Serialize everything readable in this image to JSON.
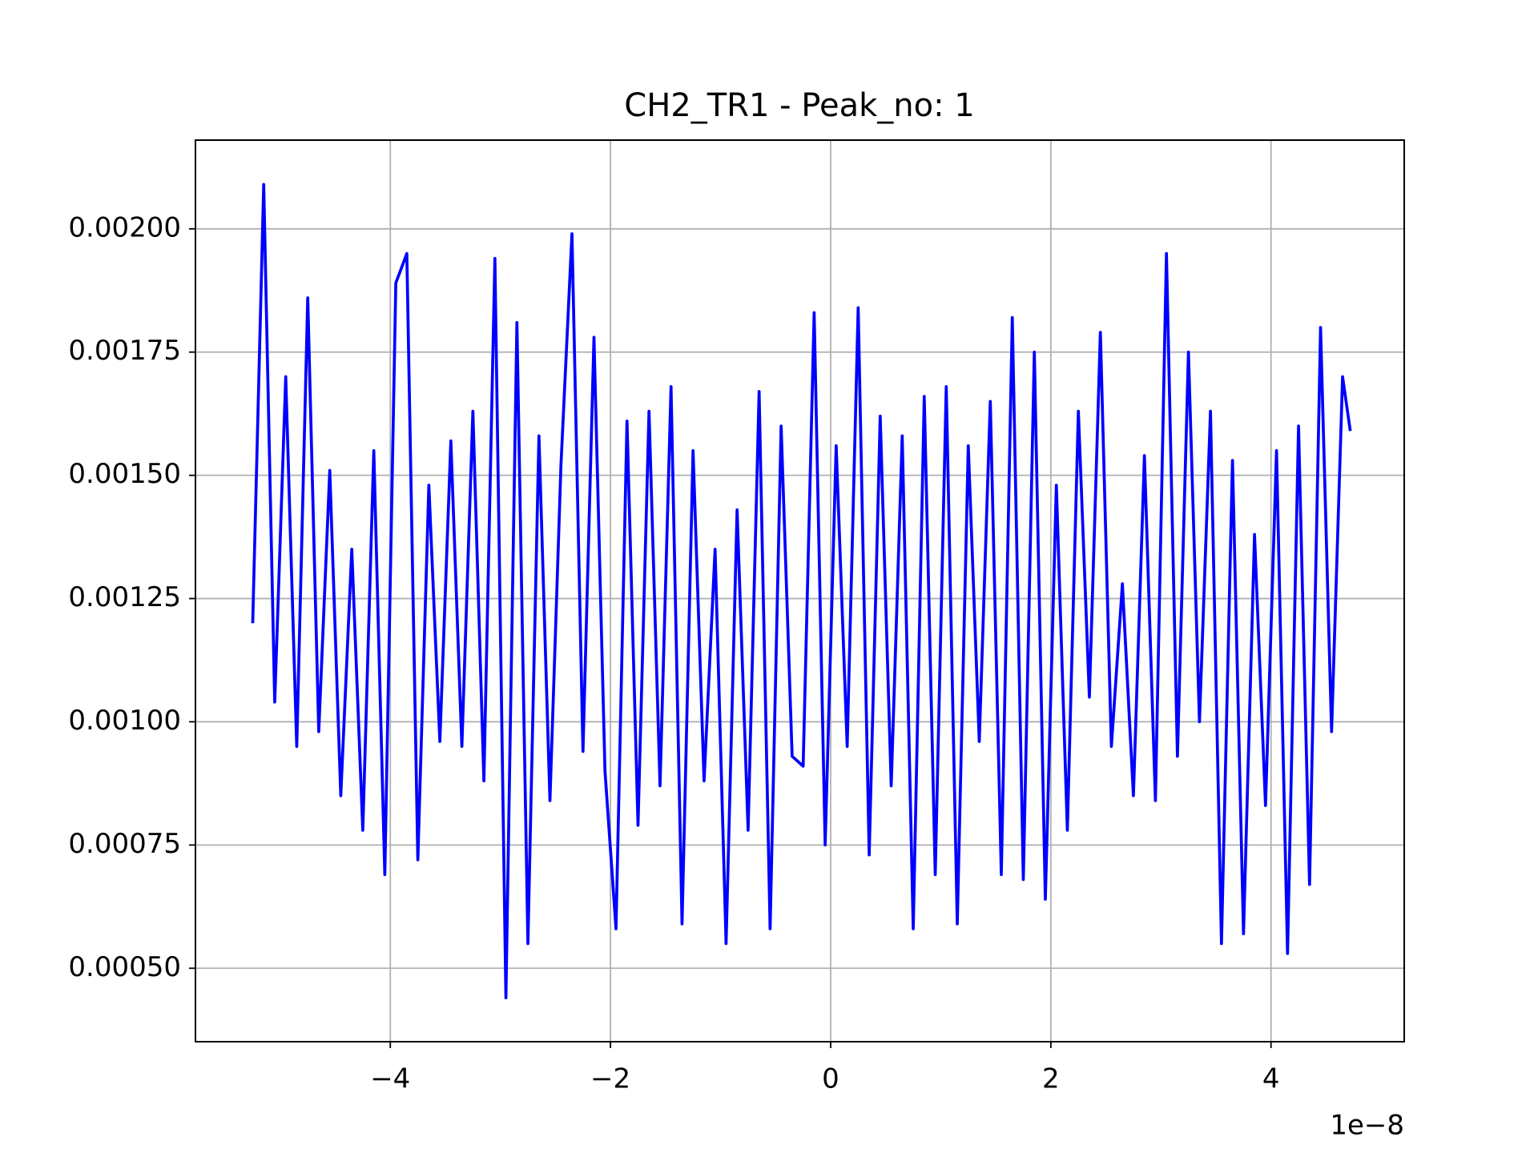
{
  "chart_data": {
    "type": "line",
    "title": "CH2_TR1 - Peak_no: 1",
    "x_offset_label": "1e−8",
    "x": [
      -5.25,
      -5.15,
      -5.05,
      -4.95,
      -4.85,
      -4.75,
      -4.65,
      -4.55,
      -4.45,
      -4.35,
      -4.25,
      -4.15,
      -4.05,
      -3.95,
      -3.85,
      -3.75,
      -3.65,
      -3.55,
      -3.45,
      -3.35,
      -3.25,
      -3.15,
      -3.05,
      -2.95,
      -2.85,
      -2.75,
      -2.65,
      -2.55,
      -2.45,
      -2.35,
      -2.25,
      -2.15,
      -2.05,
      -1.95,
      -1.85,
      -1.75,
      -1.65,
      -1.55,
      -1.45,
      -1.35,
      -1.25,
      -1.15,
      -1.05,
      -0.95,
      -0.85,
      -0.75,
      -0.65,
      -0.55,
      -0.45,
      -0.35,
      -0.25,
      -0.15,
      -0.05,
      0.05,
      0.15,
      0.25,
      0.35,
      0.45,
      0.55,
      0.65,
      0.75,
      0.85,
      0.95,
      1.05,
      1.15,
      1.25,
      1.35,
      1.45,
      1.55,
      1.65,
      1.75,
      1.85,
      1.95,
      2.05,
      2.15,
      2.25,
      2.35,
      2.45,
      2.55,
      2.65,
      2.75,
      2.85,
      2.95,
      3.05,
      3.15,
      3.25,
      3.35,
      3.45,
      3.55,
      3.65,
      3.75,
      3.85,
      3.95,
      4.05,
      4.15,
      4.25,
      4.35,
      4.45,
      4.55,
      4.65,
      4.72
    ],
    "series": [
      {
        "color": "#0000ff",
        "values": [
          0.0012,
          0.00209,
          0.00104,
          0.0017,
          0.00095,
          0.00186,
          0.00098,
          0.00151,
          0.00085,
          0.00135,
          0.00078,
          0.00155,
          0.00069,
          0.00189,
          0.00195,
          0.00072,
          0.00148,
          0.00096,
          0.00157,
          0.00095,
          0.00163,
          0.00088,
          0.00194,
          0.00044,
          0.00181,
          0.00055,
          0.00158,
          0.00084,
          0.00152,
          0.00199,
          0.00094,
          0.00178,
          0.0009,
          0.00058,
          0.00161,
          0.00079,
          0.00163,
          0.00087,
          0.00168,
          0.00059,
          0.00155,
          0.00088,
          0.00135,
          0.00055,
          0.00143,
          0.00078,
          0.00167,
          0.00058,
          0.0016,
          0.00093,
          0.00091,
          0.00183,
          0.00075,
          0.00156,
          0.00095,
          0.00184,
          0.00073,
          0.00162,
          0.00087,
          0.00158,
          0.00058,
          0.00166,
          0.00069,
          0.00168,
          0.00059,
          0.00156,
          0.00096,
          0.00165,
          0.00069,
          0.00182,
          0.00068,
          0.00175,
          0.00064,
          0.00148,
          0.00078,
          0.00163,
          0.00105,
          0.00179,
          0.00095,
          0.00128,
          0.00085,
          0.00154,
          0.00084,
          0.00195,
          0.00093,
          0.00175,
          0.001,
          0.00163,
          0.00055,
          0.00153,
          0.00057,
          0.00138,
          0.00083,
          0.00155,
          0.00053,
          0.0016,
          0.00067,
          0.0018,
          0.00098,
          0.0017,
          0.00159
        ]
      }
    ],
    "xlim": [
      -5.77,
      5.21
    ],
    "xticks": [
      {
        "value": -4,
        "label": "−4"
      },
      {
        "value": -2,
        "label": "−2"
      },
      0,
      2,
      4
    ],
    "ylim": [
      0.000351,
      0.00218
    ],
    "yticks": [
      {
        "value": 0.0005,
        "label": "0.00050"
      },
      {
        "value": 0.00075,
        "label": "0.00075"
      },
      {
        "value": 0.001,
        "label": "0.00100"
      },
      {
        "value": 0.00125,
        "label": "0.00125"
      },
      {
        "value": 0.0015,
        "label": "0.00150"
      },
      {
        "value": 0.00175,
        "label": "0.00175"
      },
      {
        "value": 0.002,
        "label": "0.00200"
      }
    ],
    "grid": true
  }
}
